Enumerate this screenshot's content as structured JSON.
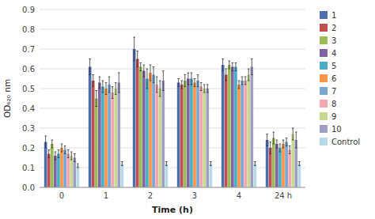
{
  "chart_data": {
    "type": "bar",
    "x_label": "Time (h)",
    "y_label": "OD₆₂₀ nm",
    "categories": [
      "0",
      "1",
      "2",
      "3",
      "4",
      "24 h"
    ],
    "series": [
      {
        "name": "1",
        "color": "#4F6EAF",
        "values": [
          0.23,
          0.61,
          0.7,
          0.53,
          0.62,
          0.24
        ],
        "errors": [
          0.03,
          0.04,
          0.06,
          0.02,
          0.03,
          0.03
        ]
      },
      {
        "name": "2",
        "color": "#C0504D",
        "values": [
          0.17,
          0.54,
          0.65,
          0.52,
          0.57,
          0.2
        ],
        "errors": [
          0.02,
          0.03,
          0.04,
          0.02,
          0.03,
          0.03
        ]
      },
      {
        "name": "3",
        "color": "#9BBB59",
        "values": [
          0.22,
          0.45,
          0.61,
          0.54,
          0.62,
          0.25
        ],
        "errors": [
          0.02,
          0.04,
          0.02,
          0.03,
          0.02,
          0.03
        ]
      },
      {
        "name": "4",
        "color": "#8064A2",
        "values": [
          0.16,
          0.53,
          0.59,
          0.55,
          0.61,
          0.22
        ],
        "errors": [
          0.02,
          0.03,
          0.03,
          0.03,
          0.02,
          0.02
        ]
      },
      {
        "name": "5",
        "color": "#4BACC6",
        "values": [
          0.17,
          0.51,
          0.55,
          0.55,
          0.61,
          0.2
        ],
        "errors": [
          0.02,
          0.03,
          0.05,
          0.03,
          0.02,
          0.02
        ]
      },
      {
        "name": "6",
        "color": "#F79646",
        "values": [
          0.2,
          0.5,
          0.58,
          0.53,
          0.52,
          0.22
        ],
        "errors": [
          0.02,
          0.03,
          0.04,
          0.02,
          0.02,
          0.02
        ]
      },
      {
        "name": "7",
        "color": "#7BA7D3",
        "values": [
          0.19,
          0.52,
          0.57,
          0.54,
          0.54,
          0.23
        ],
        "errors": [
          0.02,
          0.04,
          0.04,
          0.03,
          0.02,
          0.02
        ]
      },
      {
        "name": "8",
        "color": "#F4A7B2",
        "values": [
          0.17,
          0.48,
          0.52,
          0.51,
          0.54,
          0.19
        ],
        "errors": [
          0.02,
          0.03,
          0.04,
          0.02,
          0.02,
          0.02
        ]
      },
      {
        "name": "9",
        "color": "#C6D98F",
        "values": [
          0.16,
          0.5,
          0.5,
          0.5,
          0.57,
          0.27
        ],
        "errors": [
          0.02,
          0.03,
          0.04,
          0.02,
          0.03,
          0.03
        ]
      },
      {
        "name": "10",
        "color": "#A09DC2",
        "values": [
          0.15,
          0.53,
          0.54,
          0.5,
          0.61,
          0.24
        ],
        "errors": [
          0.02,
          0.05,
          0.05,
          0.02,
          0.04,
          0.04
        ]
      },
      {
        "name": "Control",
        "color": "#B8D9EA",
        "values": [
          0.11,
          0.12,
          0.12,
          0.12,
          0.12,
          0.12
        ],
        "errors": [
          0.01,
          0.01,
          0.01,
          0.01,
          0.01,
          0.01
        ]
      }
    ],
    "ylim": [
      0,
      0.9
    ],
    "yticks": [
      {
        "value": 0,
        "label": "0.0"
      },
      0.1,
      0.2,
      0.3,
      0.4,
      0.5,
      0.6,
      0.7,
      0.8,
      0.9
    ],
    "grid": true,
    "legend": "right"
  }
}
